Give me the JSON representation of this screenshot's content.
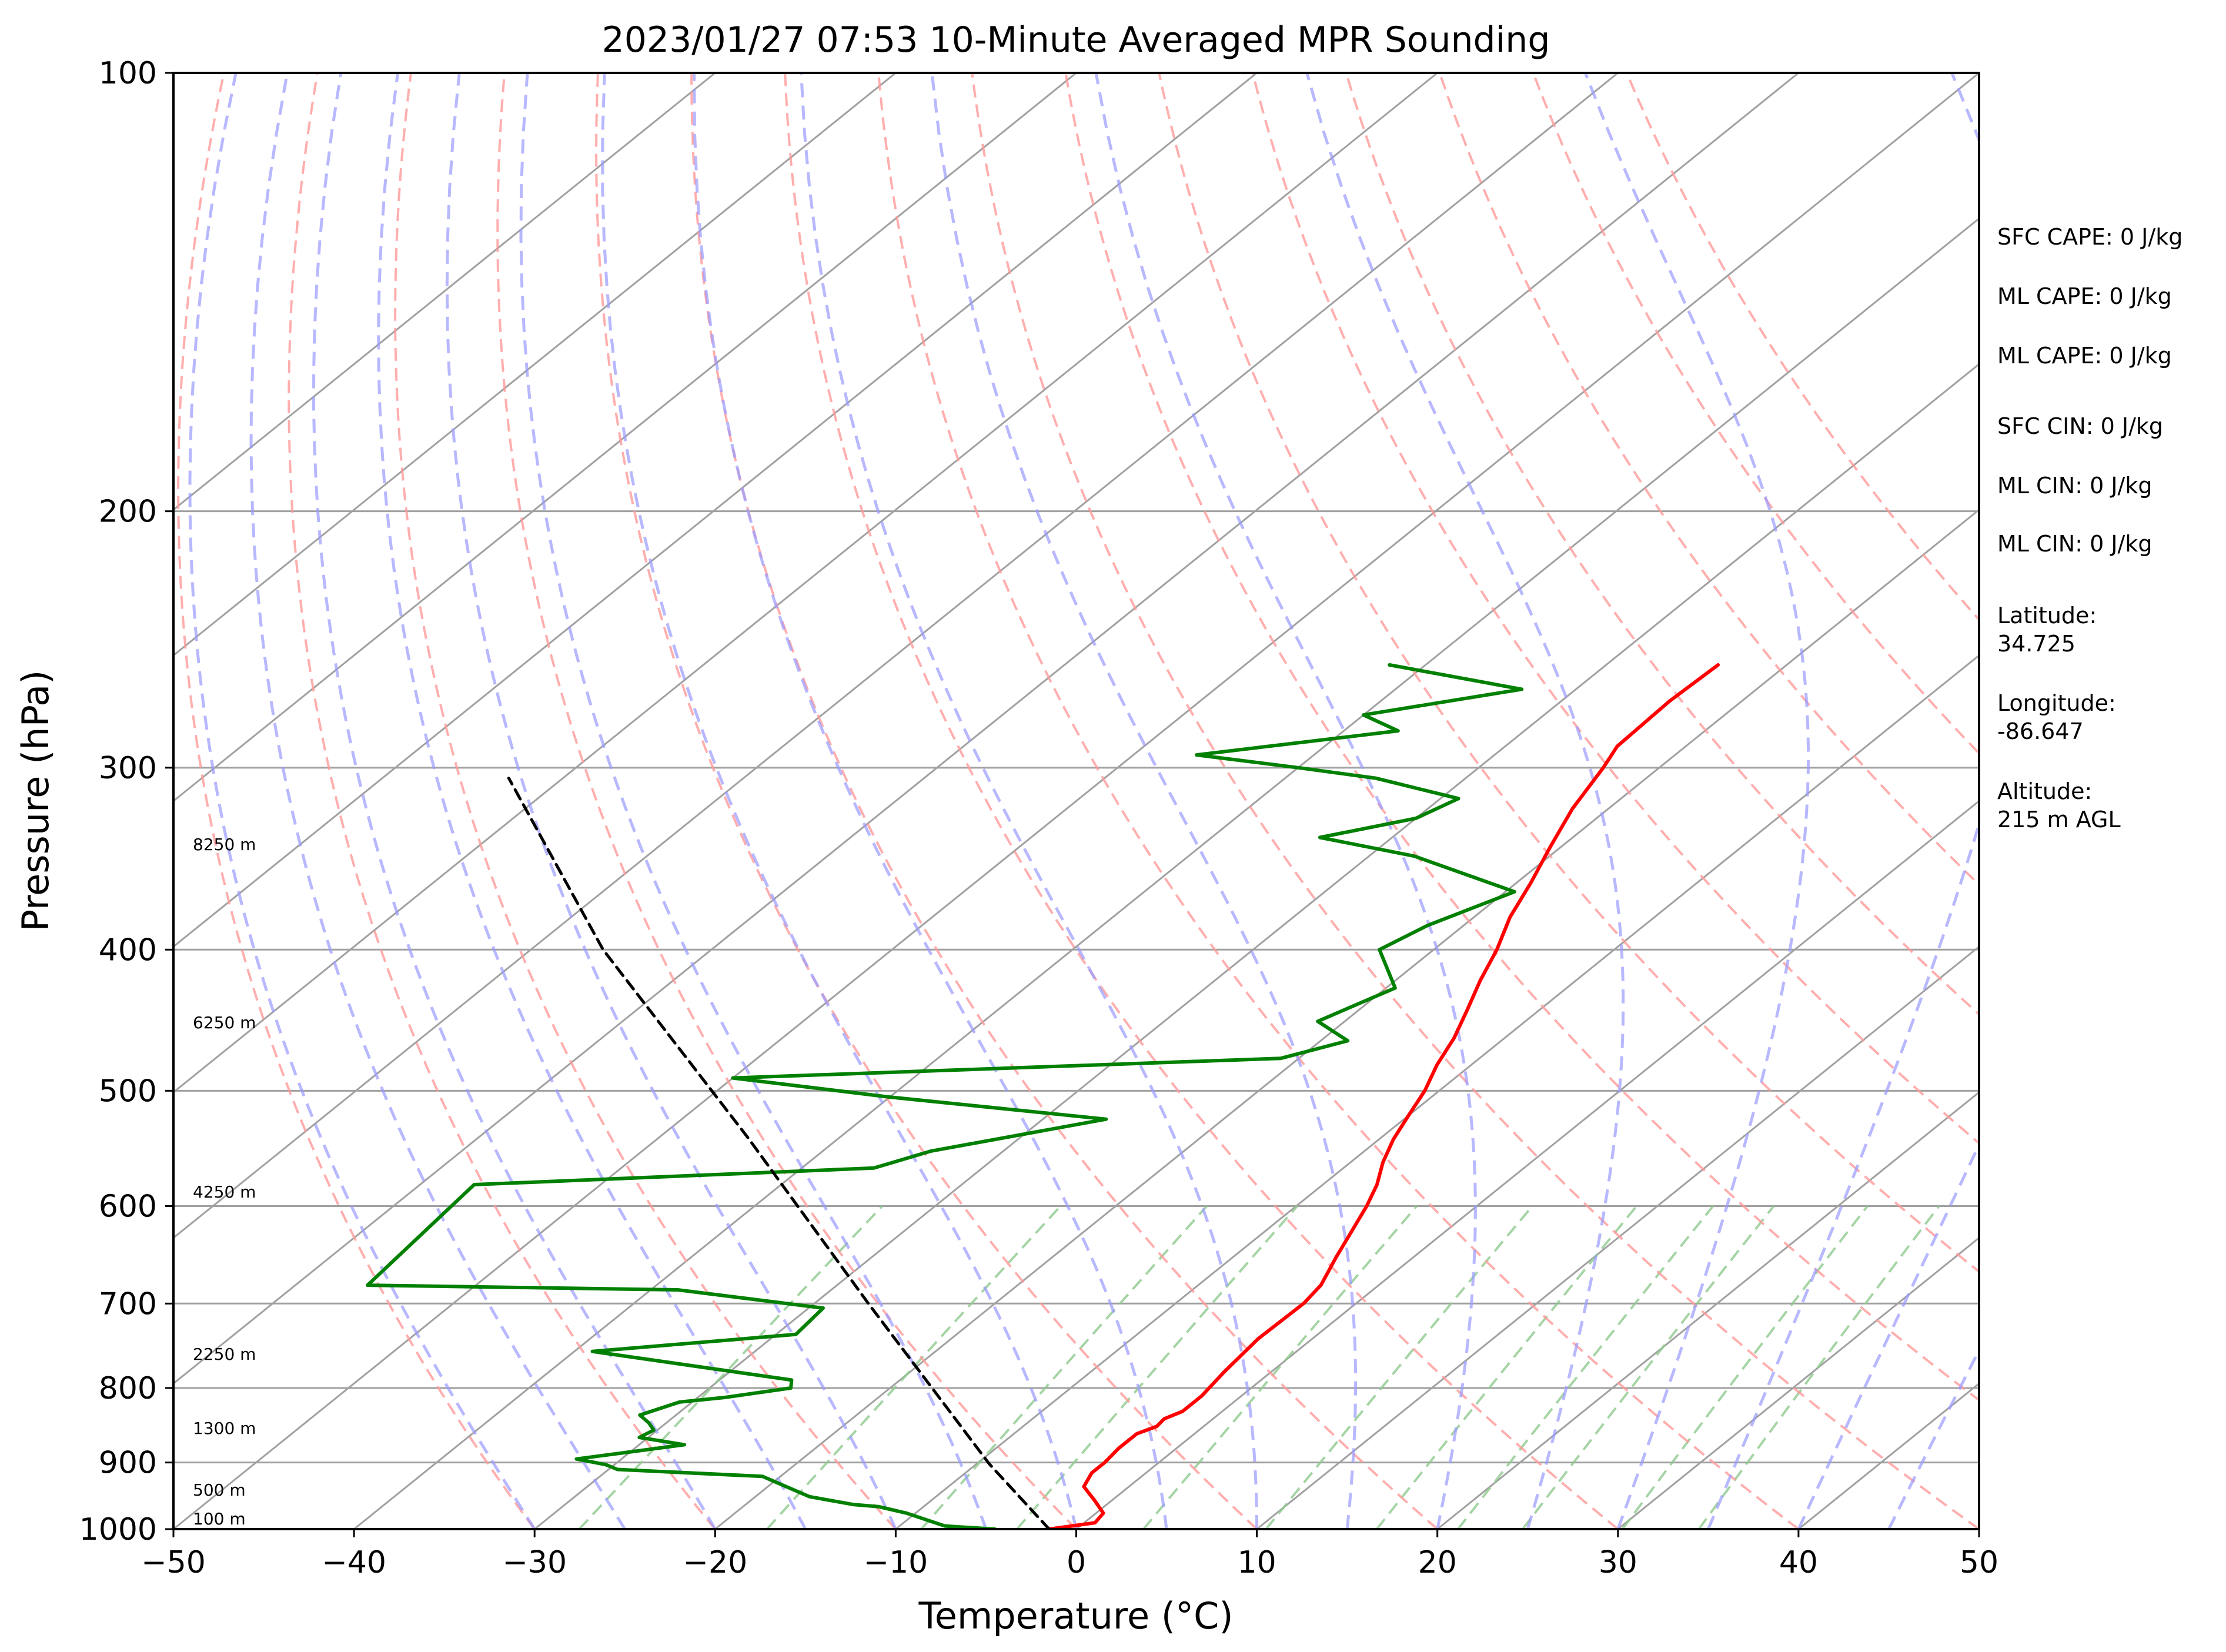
{
  "chart_data": {
    "type": "line",
    "title": "2023/01/27 07:53 10-Minute Averaged MPR Sounding",
    "xlabel": "Temperature (°C)",
    "ylabel": "Pressure (hPa)",
    "xlim": [
      -50,
      50
    ],
    "ylim": [
      1000,
      100
    ],
    "y_scale": "log",
    "skew": true,
    "x_ticks": [
      "−50",
      "−40",
      "−30",
      "−20",
      "−10",
      "0",
      "10",
      "20",
      "30",
      "40",
      "50"
    ],
    "y_ticks": [
      "100",
      "200",
      "300",
      "400",
      "500",
      "600",
      "700",
      "800",
      "900",
      "1000"
    ],
    "grid": true,
    "colors": {
      "temperature": "#ff0000",
      "dewpoint": "#008000",
      "parcel": "#000000",
      "isotherm": "#a0a0a0",
      "dry_adiabat": "#ff9a9a",
      "moist_adiabat": "#9a9aff",
      "mixing_ratio": "#8fc98f"
    },
    "height_labels": [
      "8250 m",
      "6250 m",
      "4250 m",
      "2250 m",
      "1300 m",
      "500 m",
      "100 m"
    ],
    "series": [
      {
        "key": "temperature",
        "points": [
          [
            -1.5,
            1000
          ],
          [
            0.6,
            990
          ],
          [
            0.4,
            975
          ],
          [
            -1.0,
            955
          ],
          [
            -2.5,
            935
          ],
          [
            -3.0,
            915
          ],
          [
            -3.0,
            900
          ],
          [
            -3.2,
            880
          ],
          [
            -3.2,
            860
          ],
          [
            -2.6,
            850
          ],
          [
            -2.7,
            840
          ],
          [
            -2.2,
            830
          ],
          [
            -2.2,
            810
          ],
          [
            -2.6,
            780
          ],
          [
            -3.0,
            740
          ],
          [
            -2.9,
            700
          ],
          [
            -3.2,
            680
          ],
          [
            -4.3,
            650
          ],
          [
            -5.0,
            630
          ],
          [
            -6.1,
            600
          ],
          [
            -7.0,
            580
          ],
          [
            -8.2,
            560
          ],
          [
            -9.2,
            540
          ],
          [
            -10.0,
            520
          ],
          [
            -10.8,
            500
          ],
          [
            -11.9,
            480
          ],
          [
            -12.8,
            460
          ],
          [
            -14.0,
            440
          ],
          [
            -15.3,
            420
          ],
          [
            -16.5,
            400
          ],
          [
            -18.0,
            380
          ],
          [
            -19.2,
            360
          ],
          [
            -20.6,
            340
          ],
          [
            -22.0,
            320
          ],
          [
            -23.1,
            300
          ],
          [
            -23.8,
            290
          ],
          [
            -24.0,
            270
          ],
          [
            -23.8,
            255
          ]
        ]
      },
      {
        "key": "dewpoint",
        "points": [
          [
            -4.5,
            1000
          ],
          [
            -7.5,
            995
          ],
          [
            -9.0,
            985
          ],
          [
            -10.5,
            975
          ],
          [
            -12.5,
            965
          ],
          [
            -14.0,
            962
          ],
          [
            -15.0,
            958
          ],
          [
            -17.0,
            950
          ],
          [
            -21.0,
            920
          ],
          [
            -29.5,
            910
          ],
          [
            -30.5,
            903
          ],
          [
            -32.5,
            895
          ],
          [
            -30.0,
            885
          ],
          [
            -27.5,
            875
          ],
          [
            -30.5,
            865
          ],
          [
            -30.2,
            855
          ],
          [
            -31.0,
            845
          ],
          [
            -32.0,
            835
          ],
          [
            -30.7,
            818
          ],
          [
            -28.5,
            812
          ],
          [
            -25.5,
            800
          ],
          [
            -26.0,
            790
          ],
          [
            -39.0,
            755
          ],
          [
            -28.9,
            735
          ],
          [
            -29.2,
            705
          ],
          [
            -38.5,
            685
          ],
          [
            -56.0,
            680
          ],
          [
            -57.0,
            580
          ],
          [
            -36.0,
            565
          ],
          [
            -34.0,
            550
          ],
          [
            -26.5,
            523
          ],
          [
            -40.0,
            505
          ],
          [
            -50.0,
            490
          ],
          [
            -21.0,
            475
          ],
          [
            -18.5,
            462
          ],
          [
            -21.5,
            448
          ],
          [
            -19.5,
            425
          ],
          [
            -23.0,
            400
          ],
          [
            -22.0,
            385
          ],
          [
            -19.5,
            365
          ],
          [
            -27.5,
            345
          ],
          [
            -34.0,
            335
          ],
          [
            -30.0,
            325
          ],
          [
            -29.0,
            315
          ],
          [
            -35.0,
            305
          ],
          [
            -40.0,
            300
          ],
          [
            -46.5,
            294
          ],
          [
            -37.0,
            283
          ],
          [
            -40.0,
            276
          ],
          [
            -33.0,
            265
          ],
          [
            -42.0,
            255
          ]
        ]
      },
      {
        "key": "parcel",
        "points": [
          [
            -1.5,
            1000
          ],
          [
            -9.3,
            902
          ],
          [
            -27.0,
            700
          ],
          [
            -45.0,
            539
          ],
          [
            -66.0,
            400
          ],
          [
            -83.0,
            305
          ]
        ]
      }
    ]
  },
  "info_panel": {
    "sfc_cape": "SFC CAPE: 0 J/kg",
    "ml_cape_1": "ML CAPE: 0 J/kg",
    "ml_cape_2": "ML CAPE: 0 J/kg",
    "sfc_cin": "SFC CIN: 0 J/kg",
    "ml_cin_1": "ML CIN: 0 J/kg",
    "ml_cin_2": "ML CIN: 0 J/kg",
    "latitude_label": "Latitude:",
    "latitude_value": "34.725",
    "longitude_label": "Longitude:",
    "longitude_value": "-86.647",
    "altitude_label": "Altitude:",
    "altitude_value": "215 m AGL"
  }
}
